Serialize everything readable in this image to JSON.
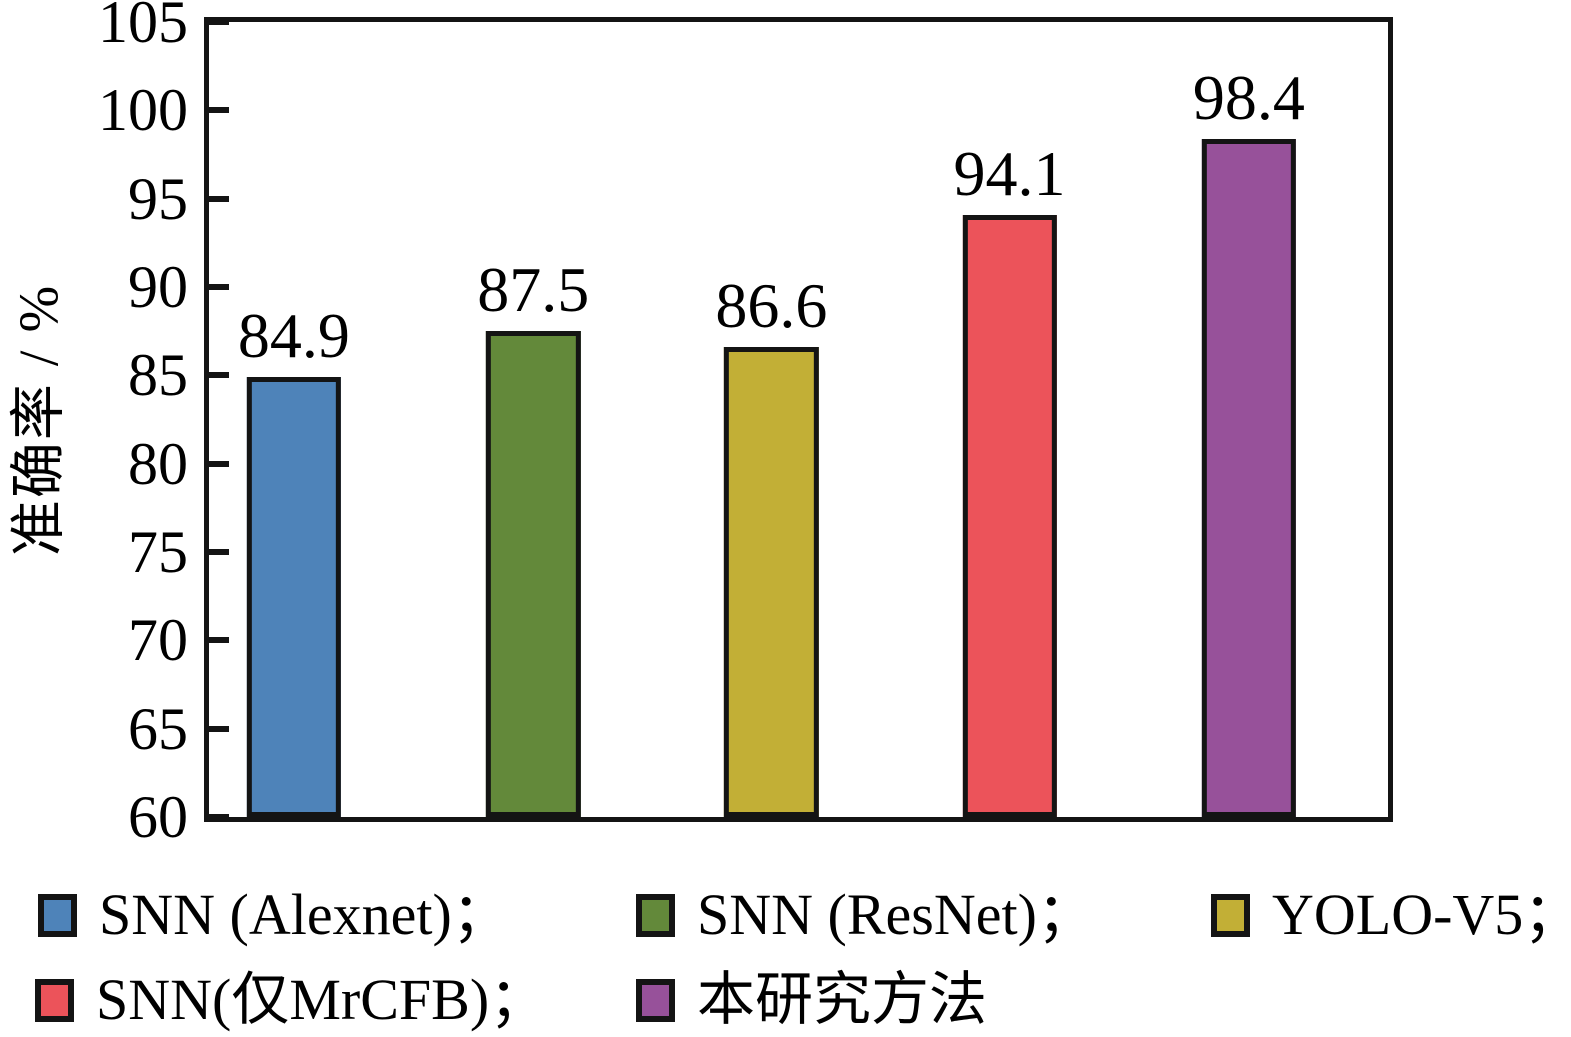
{
  "figure": {
    "background": "#ffffff",
    "axis_color": "#141414",
    "text_color": "#000000"
  },
  "chart_data": {
    "type": "bar",
    "title": "",
    "xlabel": "",
    "ylabel": "准确率 / %",
    "ylim": [
      60,
      105
    ],
    "yticks": [
      60,
      65,
      70,
      75,
      80,
      85,
      90,
      95,
      100,
      105
    ],
    "grid": false,
    "legend_position": "bottom",
    "categories": [
      "SNN (Alexnet)",
      "SNN (ResNet)",
      "YOLO-V5",
      "SNN(仅MrCFB)",
      "本研究方法"
    ],
    "values": [
      84.9,
      87.5,
      86.6,
      94.1,
      98.4
    ],
    "value_labels": [
      "84.9",
      "87.5",
      "86.6",
      "94.1",
      "98.4"
    ],
    "bar_colors": [
      "#4E83B9",
      "#63893A",
      "#C2AF36",
      "#EC535A",
      "#97519A"
    ]
  },
  "legend": {
    "rows": [
      [
        {
          "label": "SNN (Alexnet)；",
          "color": "#4E83B9"
        },
        {
          "label": "SNN (ResNet)；",
          "color": "#63893A"
        },
        {
          "label": "YOLO-V5；",
          "color": "#C2AF36"
        }
      ],
      [
        {
          "label": "SNN(仅MrCFB)；",
          "color": "#EC535A"
        },
        {
          "label": "本研究方法",
          "color": "#97519A"
        }
      ]
    ]
  }
}
